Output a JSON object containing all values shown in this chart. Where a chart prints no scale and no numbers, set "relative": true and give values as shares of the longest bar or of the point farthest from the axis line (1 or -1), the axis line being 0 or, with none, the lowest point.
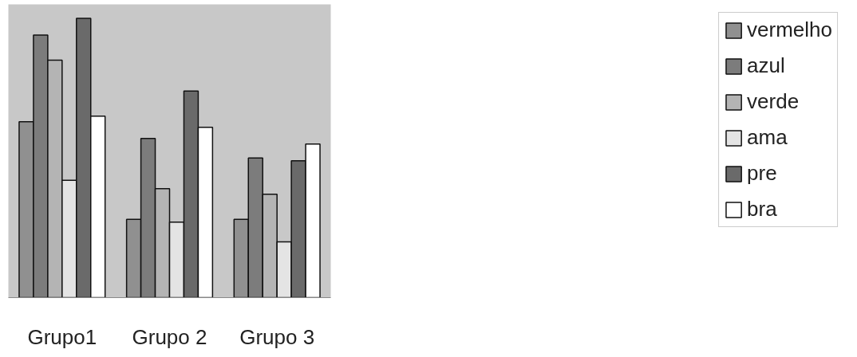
{
  "chart_data": {
    "type": "bar",
    "relative": true,
    "categories": [
      "Grupo1",
      "Grupo 2",
      "Grupo 3"
    ],
    "series": [
      {
        "name": "vermelho",
        "color": "#909090",
        "values": [
          0.63,
          0.28,
          0.28
        ]
      },
      {
        "name": "azul",
        "color": "#7c7c7c",
        "values": [
          0.94,
          0.57,
          0.5
        ]
      },
      {
        "name": "verde",
        "color": "#b4b4b4",
        "values": [
          0.85,
          0.39,
          0.37
        ]
      },
      {
        "name": "ama",
        "color": "#e4e4e4",
        "values": [
          0.42,
          0.27,
          0.2
        ]
      },
      {
        "name": "pre",
        "color": "#6a6a6a",
        "values": [
          1.0,
          0.74,
          0.49
        ]
      },
      {
        "name": "bra",
        "color": "#ffffff",
        "values": [
          0.65,
          0.61,
          0.55
        ]
      }
    ],
    "legend": "right",
    "grid": false
  }
}
